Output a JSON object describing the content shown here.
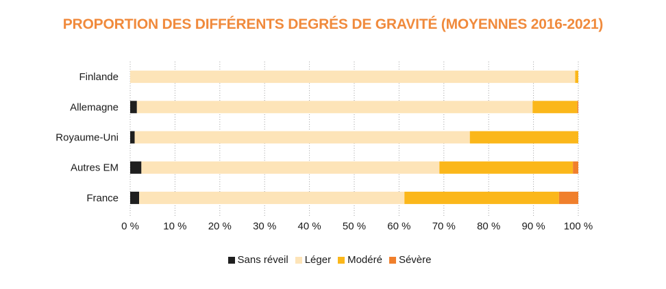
{
  "chart_data": {
    "type": "bar",
    "orientation": "horizontal",
    "stacked": true,
    "title": "PROPORTION DES DIFFÉRENTS DEGRÉS DE GRAVITÉ (MOYENNES 2016-2021)",
    "categories": [
      "Finlande",
      "Allemagne",
      "Royaume-Uni",
      "Autres EM",
      "France"
    ],
    "series": [
      {
        "name": "Sans réveil",
        "color": "#1f1f1f",
        "values": [
          0,
          1.5,
          1,
          2.5,
          2
        ]
      },
      {
        "name": "Léger",
        "color": "#fde4b8",
        "values": [
          99.3,
          88.3,
          74.8,
          66.5,
          59.2
        ]
      },
      {
        "name": "Modéré",
        "color": "#fbb71a",
        "values": [
          0.7,
          10,
          24.2,
          29.8,
          34.5
        ]
      },
      {
        "name": "Sévère",
        "color": "#f07f2c",
        "values": [
          0,
          0.2,
          0,
          1.2,
          4.3
        ]
      }
    ],
    "xlim": [
      0,
      100
    ],
    "xticks": [
      "0 %",
      "10 %",
      "20 %",
      "30 %",
      "40 %",
      "50 %",
      "60 %",
      "70 %",
      "80 %",
      "90 %",
      "100 %"
    ],
    "grid": true,
    "legend_position": "bottom"
  }
}
